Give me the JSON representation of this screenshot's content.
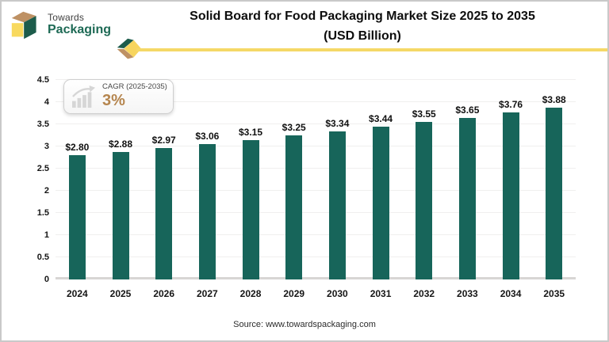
{
  "header": {
    "logo_line1": "Towards",
    "logo_line2": "Packaging",
    "title_line1": "Solid Board for Food Packaging Market Size 2025 to 2035",
    "title_line2": "(USD Billion)"
  },
  "badge": {
    "label": "CAGR (2025-2035)",
    "value": "3%"
  },
  "footer": {
    "source": "Source: www.towardspackaging.com"
  },
  "colors": {
    "bar": "#17655a",
    "accent_yellow": "#f5d867",
    "accent_tan": "#be9164",
    "logo_green": "#1e6a55",
    "cube_green": "#1d5c4b",
    "cagr_value": "#b5854e"
  },
  "chart_data": {
    "type": "bar",
    "title": "Solid Board for Food Packaging Market Size 2025 to 2035 (USD Billion)",
    "xlabel": "",
    "ylabel": "",
    "categories": [
      "2024",
      "2025",
      "2026",
      "2027",
      "2028",
      "2029",
      "2030",
      "2031",
      "2032",
      "2033",
      "2034",
      "2035"
    ],
    "values": [
      2.8,
      2.88,
      2.97,
      3.06,
      3.15,
      3.25,
      3.34,
      3.44,
      3.55,
      3.65,
      3.76,
      3.88
    ],
    "labels": [
      "$2.80",
      "$2.88",
      "$2.97",
      "$3.06",
      "$3.15",
      "$3.25",
      "$3.34",
      "$3.44",
      "$3.55",
      "$3.65",
      "$3.76",
      "$3.88"
    ],
    "ylim": [
      0,
      4.5
    ],
    "y_ticks": [
      4.5,
      4,
      3.5,
      3,
      2.5,
      2,
      1.5,
      1,
      0.5,
      0
    ],
    "grid": true,
    "legend": false,
    "bar_color": "#17655a"
  }
}
